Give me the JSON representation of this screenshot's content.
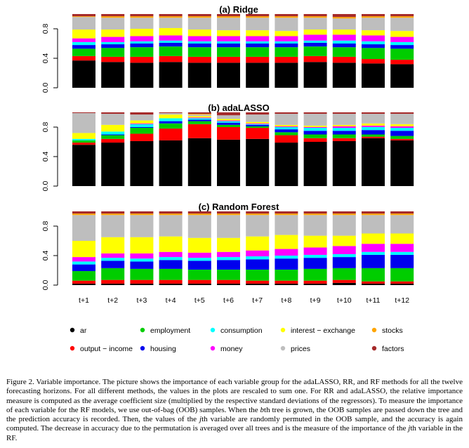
{
  "chart_data": [
    {
      "type": "bar",
      "stacked": true,
      "title": "(a) Ridge",
      "ylim": [
        0,
        1
      ],
      "yticks": [
        "0.0",
        "0.4",
        "0.8"
      ],
      "categories": [
        "t+1",
        "t+2",
        "t+3",
        "t+4",
        "t+5",
        "t+6",
        "t+7",
        "t+8",
        "t+9",
        "t+10",
        "t+11",
        "t+12"
      ],
      "series": [
        {
          "name": "ar",
          "values": [
            0.37,
            0.35,
            0.34,
            0.35,
            0.34,
            0.34,
            0.34,
            0.34,
            0.35,
            0.34,
            0.33,
            0.32
          ]
        },
        {
          "name": "output - income",
          "values": [
            0.06,
            0.07,
            0.08,
            0.08,
            0.08,
            0.08,
            0.08,
            0.08,
            0.08,
            0.08,
            0.06,
            0.06
          ]
        },
        {
          "name": "employment",
          "values": [
            0.1,
            0.12,
            0.13,
            0.13,
            0.13,
            0.13,
            0.13,
            0.13,
            0.13,
            0.13,
            0.15,
            0.15
          ]
        },
        {
          "name": "housing",
          "values": [
            0.05,
            0.05,
            0.05,
            0.05,
            0.05,
            0.05,
            0.05,
            0.05,
            0.05,
            0.05,
            0.05,
            0.05
          ]
        },
        {
          "name": "consumption",
          "values": [
            0.04,
            0.03,
            0.03,
            0.03,
            0.03,
            0.03,
            0.03,
            0.03,
            0.03,
            0.04,
            0.04,
            0.04
          ]
        },
        {
          "name": "money",
          "values": [
            0.05,
            0.07,
            0.07,
            0.07,
            0.07,
            0.07,
            0.07,
            0.07,
            0.08,
            0.08,
            0.08,
            0.07
          ]
        },
        {
          "name": "interest - exchange",
          "values": [
            0.12,
            0.1,
            0.1,
            0.1,
            0.09,
            0.08,
            0.08,
            0.07,
            0.07,
            0.07,
            0.07,
            0.08
          ]
        },
        {
          "name": "prices",
          "values": [
            0.17,
            0.16,
            0.15,
            0.14,
            0.16,
            0.17,
            0.17,
            0.18,
            0.16,
            0.15,
            0.17,
            0.18
          ]
        },
        {
          "name": "stocks",
          "values": [
            0.01,
            0.02,
            0.02,
            0.02,
            0.02,
            0.02,
            0.02,
            0.02,
            0.02,
            0.02,
            0.02,
            0.02
          ]
        },
        {
          "name": "factors",
          "values": [
            0.03,
            0.03,
            0.03,
            0.03,
            0.03,
            0.03,
            0.03,
            0.03,
            0.03,
            0.04,
            0.03,
            0.03
          ]
        }
      ]
    },
    {
      "type": "bar",
      "stacked": true,
      "title": "(b) adaLASSO",
      "ylim": [
        0,
        1
      ],
      "yticks": [
        "0.0",
        "0.4",
        "0.8"
      ],
      "categories": [
        "t+1",
        "t+2",
        "t+3",
        "t+4",
        "t+5",
        "t+6",
        "t+7",
        "t+8",
        "t+9",
        "t+10",
        "t+11",
        "t+12"
      ],
      "series": [
        {
          "name": "ar",
          "values": [
            0.56,
            0.59,
            0.61,
            0.62,
            0.65,
            0.63,
            0.64,
            0.59,
            0.6,
            0.61,
            0.65,
            0.62
          ]
        },
        {
          "name": "output - income",
          "values": [
            0.03,
            0.05,
            0.1,
            0.16,
            0.19,
            0.17,
            0.15,
            0.1,
            0.05,
            0.04,
            0.02,
            0.02
          ]
        },
        {
          "name": "employment",
          "values": [
            0.03,
            0.05,
            0.08,
            0.07,
            0.04,
            0.03,
            0.02,
            0.04,
            0.05,
            0.05,
            0.03,
            0.04
          ]
        },
        {
          "name": "housing",
          "values": [
            0.0,
            0.01,
            0.01,
            0.03,
            0.02,
            0.03,
            0.02,
            0.04,
            0.05,
            0.05,
            0.06,
            0.07
          ]
        },
        {
          "name": "consumption",
          "values": [
            0.02,
            0.04,
            0.04,
            0.04,
            0.02,
            0.02,
            0.01,
            0.03,
            0.04,
            0.04,
            0.04,
            0.04
          ]
        },
        {
          "name": "money",
          "values": [
            0.0,
            0.0,
            0.01,
            0.0,
            0.01,
            0.01,
            0.01,
            0.01,
            0.01,
            0.02,
            0.02,
            0.02
          ]
        },
        {
          "name": "interest - exchange",
          "values": [
            0.08,
            0.09,
            0.04,
            0.05,
            0.02,
            0.02,
            0.02,
            0.02,
            0.02,
            0.02,
            0.03,
            0.03
          ]
        },
        {
          "name": "prices",
          "values": [
            0.27,
            0.15,
            0.08,
            0.02,
            0.02,
            0.05,
            0.1,
            0.15,
            0.16,
            0.15,
            0.13,
            0.14
          ]
        },
        {
          "name": "stocks",
          "values": [
            0.0,
            0.0,
            0.0,
            0.0,
            0.01,
            0.0,
            0.0,
            0.0,
            0.0,
            0.0,
            0.0,
            0.0
          ]
        },
        {
          "name": "factors",
          "values": [
            0.01,
            0.02,
            0.03,
            0.01,
            0.02,
            0.04,
            0.03,
            0.02,
            0.02,
            0.02,
            0.02,
            0.02
          ]
        }
      ]
    },
    {
      "type": "bar",
      "stacked": true,
      "title": "(c) Random Forest",
      "ylim": [
        0,
        1
      ],
      "yticks": [
        "0.0",
        "0.4",
        "0.8"
      ],
      "categories": [
        "t+1",
        "t+2",
        "t+3",
        "t+4",
        "t+5",
        "t+6",
        "t+7",
        "t+8",
        "t+9",
        "t+10",
        "t+11",
        "t+12"
      ],
      "series": [
        {
          "name": "ar",
          "values": [
            0.02,
            0.02,
            0.02,
            0.02,
            0.02,
            0.02,
            0.02,
            0.02,
            0.02,
            0.03,
            0.02,
            0.02
          ]
        },
        {
          "name": "output - income",
          "values": [
            0.04,
            0.05,
            0.05,
            0.05,
            0.05,
            0.05,
            0.04,
            0.04,
            0.04,
            0.04,
            0.03,
            0.03
          ]
        },
        {
          "name": "employment",
          "values": [
            0.13,
            0.16,
            0.15,
            0.15,
            0.14,
            0.14,
            0.15,
            0.15,
            0.16,
            0.16,
            0.18,
            0.18
          ]
        },
        {
          "name": "housing",
          "values": [
            0.09,
            0.1,
            0.1,
            0.12,
            0.12,
            0.13,
            0.14,
            0.15,
            0.15,
            0.15,
            0.18,
            0.18
          ]
        },
        {
          "name": "consumption",
          "values": [
            0.04,
            0.04,
            0.04,
            0.04,
            0.04,
            0.04,
            0.04,
            0.04,
            0.04,
            0.04,
            0.04,
            0.04
          ]
        },
        {
          "name": "money",
          "values": [
            0.06,
            0.06,
            0.07,
            0.07,
            0.07,
            0.07,
            0.08,
            0.09,
            0.1,
            0.11,
            0.11,
            0.11
          ]
        },
        {
          "name": "interest - exchange",
          "values": [
            0.22,
            0.22,
            0.22,
            0.21,
            0.2,
            0.19,
            0.19,
            0.19,
            0.16,
            0.14,
            0.14,
            0.14
          ]
        },
        {
          "name": "prices",
          "values": [
            0.35,
            0.3,
            0.3,
            0.29,
            0.31,
            0.31,
            0.29,
            0.27,
            0.28,
            0.28,
            0.25,
            0.25
          ]
        },
        {
          "name": "stocks",
          "values": [
            0.02,
            0.02,
            0.02,
            0.02,
            0.02,
            0.02,
            0.02,
            0.02,
            0.02,
            0.02,
            0.02,
            0.02
          ]
        },
        {
          "name": "factors",
          "values": [
            0.03,
            0.03,
            0.03,
            0.03,
            0.03,
            0.03,
            0.03,
            0.03,
            0.03,
            0.03,
            0.03,
            0.03
          ]
        }
      ]
    }
  ],
  "colors": {
    "ar": "#000000",
    "output - income": "#ff0000",
    "employment": "#00cd00",
    "housing": "#0000ee",
    "consumption": "#00ffff",
    "money": "#ff00ff",
    "interest - exchange": "#ffff00",
    "prices": "#bebebe",
    "stocks": "#ffa500",
    "factors": "#a52a2a"
  },
  "legend": [
    {
      "name": "ar",
      "label": "ar"
    },
    {
      "name": "employment",
      "label": "employment"
    },
    {
      "name": "consumption",
      "label": "consumption"
    },
    {
      "name": "interest - exchange",
      "label": "interest − exchange"
    },
    {
      "name": "stocks",
      "label": "stocks"
    },
    {
      "name": "output - income",
      "label": "output − income"
    },
    {
      "name": "housing",
      "label": "housing"
    },
    {
      "name": "money",
      "label": "money"
    },
    {
      "name": "prices",
      "label": "prices"
    },
    {
      "name": "factors",
      "label": "factors"
    }
  ],
  "caption": {
    "label": "Figure 2.",
    "parts": [
      {
        "t": "Variable importance. The picture shows the importance of each variable group for the adaLASSO, RR, and RF methods for all the twelve forecasting horizons. For all different methods, the values in the plots are rescaled to sum one. For RR and adaLASSO, the relative importance measure is computed as the average coefficient size (multiplied by the respective standard deviations of the regressors). To measure the importance of each variable for the RF models, we use out-of-bag (OOB) samples. When the ",
        "i": false
      },
      {
        "t": "b",
        "i": true
      },
      {
        "t": "th tree is grown, the OOB samples are passed down the tree and the prediction accuracy is recorded. Then, the values of the ",
        "i": false
      },
      {
        "t": "j",
        "i": true
      },
      {
        "t": "th variable are randomly permuted in the OOB sample, and the accuracy is again computed. The decrease in accuracy due to the permutation is averaged over all trees and is the measure of the importance of the ",
        "i": false
      },
      {
        "t": "j",
        "i": true
      },
      {
        "t": "th variable in the RF.",
        "i": false
      }
    ]
  }
}
